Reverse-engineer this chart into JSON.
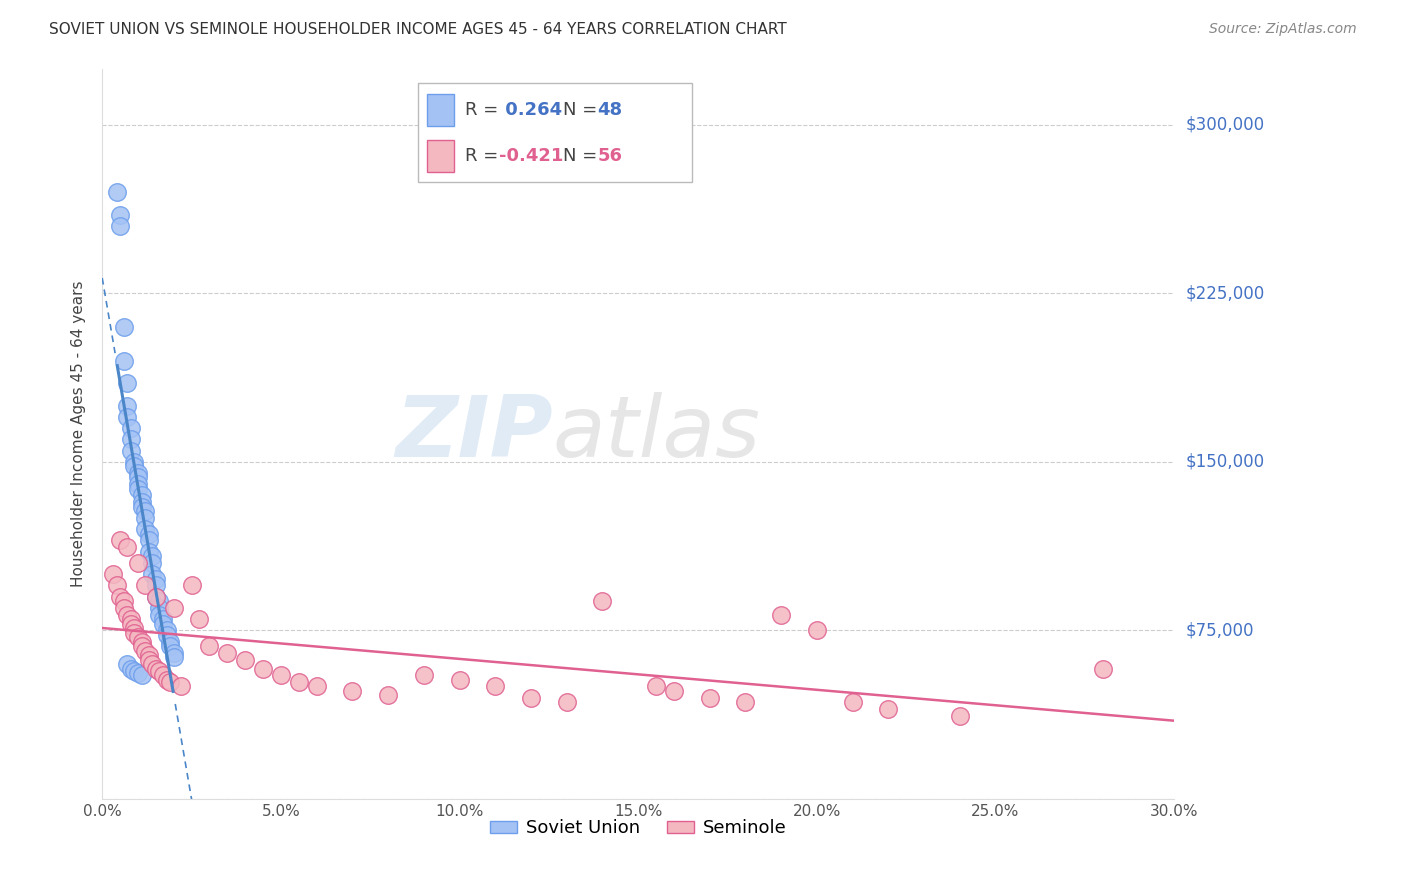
{
  "title": "SOVIET UNION VS SEMINOLE HOUSEHOLDER INCOME AGES 45 - 64 YEARS CORRELATION CHART",
  "source": "Source: ZipAtlas.com",
  "ylabel": "Householder Income Ages 45 - 64 years",
  "xlim": [
    0.0,
    0.3
  ],
  "ylim": [
    0,
    325000
  ],
  "yticks": [
    0,
    75000,
    150000,
    225000,
    300000
  ],
  "ytick_labels": [
    "",
    "$75,000",
    "$150,000",
    "$225,000",
    "$300,000"
  ],
  "xtick_labels": [
    "0.0%",
    "5.0%",
    "10.0%",
    "15.0%",
    "20.0%",
    "25.0%",
    "30.0%"
  ],
  "xticks": [
    0.0,
    0.05,
    0.1,
    0.15,
    0.2,
    0.25,
    0.3
  ],
  "soviet_color": "#a4c2f4",
  "seminole_color": "#f4b8c1",
  "soviet_edge_color": "#6d9eeb",
  "seminole_edge_color": "#e06090",
  "soviet_line_color": "#4a86c8",
  "seminole_line_color": "#e06090",
  "soviet_R": 0.264,
  "soviet_N": 48,
  "seminole_R": -0.421,
  "seminole_N": 56,
  "legend_label_soviet": "Soviet Union",
  "legend_label_seminole": "Seminole",
  "watermark_zip": "ZIP",
  "watermark_atlas": "atlas",
  "background_color": "#ffffff",
  "grid_color": "#cccccc",
  "soviet_scatter_x": [
    0.004,
    0.005,
    0.005,
    0.006,
    0.006,
    0.007,
    0.007,
    0.007,
    0.008,
    0.008,
    0.008,
    0.009,
    0.009,
    0.01,
    0.01,
    0.01,
    0.01,
    0.011,
    0.011,
    0.011,
    0.012,
    0.012,
    0.012,
    0.013,
    0.013,
    0.013,
    0.014,
    0.014,
    0.014,
    0.015,
    0.015,
    0.015,
    0.016,
    0.016,
    0.016,
    0.017,
    0.017,
    0.018,
    0.018,
    0.019,
    0.019,
    0.02,
    0.02,
    0.007,
    0.008,
    0.009,
    0.01,
    0.011
  ],
  "soviet_scatter_y": [
    270000,
    260000,
    255000,
    210000,
    195000,
    185000,
    175000,
    170000,
    165000,
    160000,
    155000,
    150000,
    148000,
    145000,
    143000,
    140000,
    138000,
    135000,
    132000,
    130000,
    128000,
    125000,
    120000,
    118000,
    115000,
    110000,
    108000,
    105000,
    100000,
    98000,
    95000,
    90000,
    88000,
    85000,
    82000,
    80000,
    78000,
    75000,
    73000,
    70000,
    68000,
    65000,
    63000,
    60000,
    58000,
    57000,
    56000,
    55000
  ],
  "seminole_scatter_x": [
    0.003,
    0.004,
    0.005,
    0.005,
    0.006,
    0.006,
    0.007,
    0.007,
    0.008,
    0.008,
    0.009,
    0.009,
    0.01,
    0.01,
    0.011,
    0.011,
    0.012,
    0.012,
    0.013,
    0.013,
    0.014,
    0.015,
    0.015,
    0.016,
    0.017,
    0.018,
    0.019,
    0.02,
    0.022,
    0.025,
    0.027,
    0.03,
    0.035,
    0.04,
    0.045,
    0.05,
    0.055,
    0.06,
    0.07,
    0.08,
    0.09,
    0.1,
    0.11,
    0.12,
    0.13,
    0.14,
    0.155,
    0.16,
    0.17,
    0.18,
    0.19,
    0.2,
    0.21,
    0.22,
    0.24,
    0.28
  ],
  "seminole_scatter_y": [
    100000,
    95000,
    115000,
    90000,
    88000,
    85000,
    112000,
    82000,
    80000,
    78000,
    76000,
    74000,
    105000,
    72000,
    70000,
    68000,
    66000,
    95000,
    64000,
    62000,
    60000,
    58000,
    90000,
    57000,
    55000,
    53000,
    52000,
    85000,
    50000,
    95000,
    80000,
    68000,
    65000,
    62000,
    58000,
    55000,
    52000,
    50000,
    48000,
    46000,
    55000,
    53000,
    50000,
    45000,
    43000,
    88000,
    50000,
    48000,
    45000,
    43000,
    82000,
    75000,
    43000,
    40000,
    37000,
    58000
  ]
}
